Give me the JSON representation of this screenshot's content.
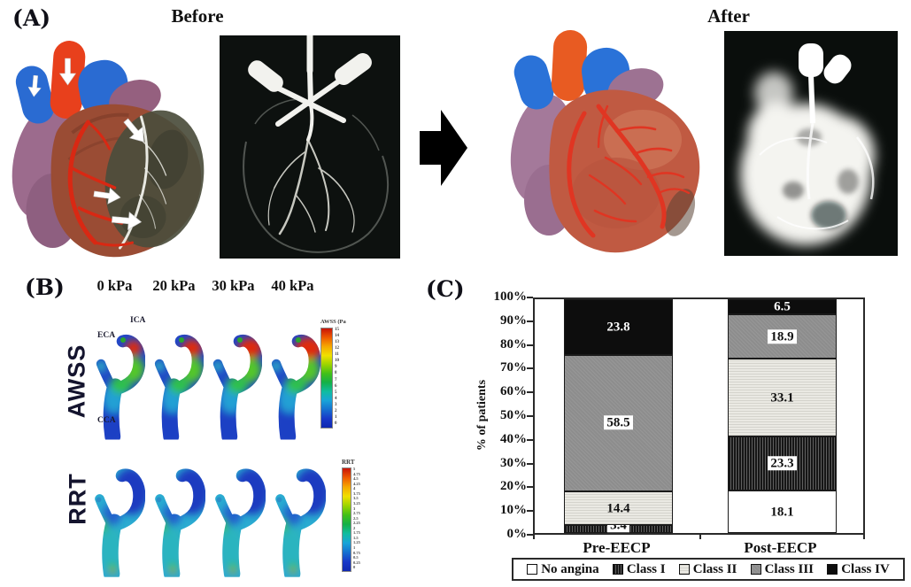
{
  "panel_a": {
    "label": "(A)",
    "before_title": "Before",
    "after_title": "After",
    "arrow_icon": "right-arrow"
  },
  "panel_b": {
    "label": "(B)",
    "pressures": [
      "0 kPa",
      "20 kPa",
      "30 kPa",
      "40 kPa"
    ],
    "rows": [
      {
        "label": "AWSS",
        "colorbar_title": "AWSS (Pa",
        "colorbar_ticks": [
          "15",
          "14",
          "13",
          "12",
          "11",
          "10",
          "9",
          "8",
          "7",
          "6",
          "5",
          "4",
          "3",
          "2",
          "1",
          "0"
        ]
      },
      {
        "label": "RRT",
        "colorbar_title": "RRT",
        "colorbar_ticks": [
          "5",
          "4.75",
          "4.5",
          "4.25",
          "4",
          "3.75",
          "3.5",
          "3.25",
          "3",
          "2.75",
          "2.5",
          "2.25",
          "2",
          "1.75",
          "1.5",
          "1.25",
          "1",
          "0.75",
          "0.5",
          "0.25",
          "0"
        ]
      }
    ],
    "anatomy": {
      "ica": "ICA",
      "eca": "ECA",
      "cca": "CCA"
    }
  },
  "panel_c": {
    "label": "(C)"
  },
  "chart_data": {
    "type": "bar",
    "stacked": true,
    "categories": [
      "Pre-EECP",
      "Post-EECP"
    ],
    "series": [
      {
        "name": "No angina",
        "values": [
          0,
          18.1
        ],
        "fill": "white"
      },
      {
        "name": "Class I",
        "values": [
          3.4,
          23.3
        ],
        "fill": "dark-stripes"
      },
      {
        "name": "Class II",
        "values": [
          14.4,
          33.1
        ],
        "fill": "light-stipple"
      },
      {
        "name": "Class III",
        "values": [
          58.5,
          18.9
        ],
        "fill": "gray"
      },
      {
        "name": "Class IV",
        "values": [
          23.8,
          6.5
        ],
        "fill": "black"
      }
    ],
    "ylabel": "% of patients",
    "yticks": [
      "0%",
      "10%",
      "20%",
      "30%",
      "40%",
      "50%",
      "60%",
      "70%",
      "80%",
      "90%",
      "100%"
    ],
    "ylim": [
      0,
      100
    ],
    "grid": false,
    "legend_position": "bottom",
    "colors": {
      "no_angina": "#ffffff",
      "class_i": "#2a2a2a",
      "class_ii": "#eae9e3",
      "class_iii": "#8d8d8d",
      "class_iv": "#0d0d0d"
    }
  }
}
